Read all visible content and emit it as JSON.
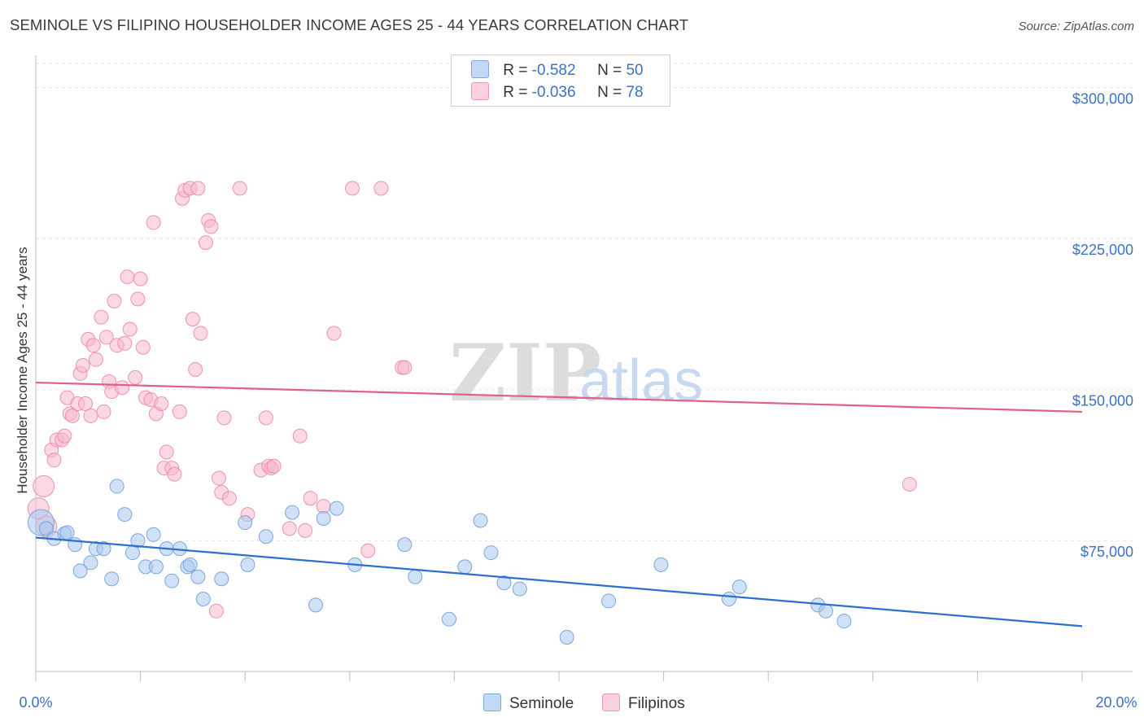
{
  "header": {
    "title": "SEMINOLE VS FILIPINO HOUSEHOLDER INCOME AGES 25 - 44 YEARS CORRELATION CHART",
    "source": "Source: ZipAtlas.com"
  },
  "watermark": {
    "zip": "ZIP",
    "atlas": "atlas"
  },
  "legend": {
    "rows": [
      {
        "r_label": "R = ",
        "r_value": "-0.582",
        "n_label": "N = ",
        "n_value": "50",
        "color": "#a9c8f0"
      },
      {
        "r_label": "R = ",
        "r_value": "-0.036",
        "n_label": "N = ",
        "n_value": "78",
        "color": "#f7b8cc"
      }
    ]
  },
  "bottom_legend": {
    "seminole": "Seminole",
    "filipinos": "Filipinos"
  },
  "chart_data": {
    "type": "scatter",
    "title": "SEMINOLE VS FILIPINO HOUSEHOLDER INCOME AGES 25 - 44 YEARS CORRELATION CHART",
    "xlabel": "",
    "ylabel": "Householder Income Ages 25 - 44 years",
    "xlim": [
      0,
      20
    ],
    "ylim": [
      10000,
      312000
    ],
    "x_tick_labels": [
      "0.0%",
      "20.0%"
    ],
    "y_ticks": [
      75000,
      150000,
      225000,
      300000
    ],
    "y_tick_labels": [
      "$75,000",
      "$150,000",
      "$225,000",
      "$300,000"
    ],
    "grid": "horizontal dashed",
    "legend_position": "top-center",
    "series": [
      {
        "name": "Seminole",
        "color": "#a9c8f0",
        "edge": "#6f9fdc",
        "line_color": "#2c6fcf",
        "trend": {
          "x": [
            0,
            20
          ],
          "y": [
            76500,
            32500
          ]
        },
        "points": [
          [
            0.1,
            84000,
            3
          ],
          [
            0.2,
            81000,
            1
          ],
          [
            0.35,
            76000,
            1
          ],
          [
            0.55,
            78500,
            1
          ],
          [
            0.6,
            79000,
            1
          ],
          [
            0.75,
            73000,
            1
          ],
          [
            0.85,
            60000,
            1
          ],
          [
            1.05,
            64000,
            1
          ],
          [
            1.15,
            71000,
            1
          ],
          [
            1.3,
            71000,
            1
          ],
          [
            1.45,
            56000,
            1
          ],
          [
            1.55,
            102000,
            1
          ],
          [
            1.7,
            88000,
            1
          ],
          [
            1.85,
            69000,
            1
          ],
          [
            1.95,
            75000,
            1
          ],
          [
            2.1,
            62000,
            1
          ],
          [
            2.25,
            78000,
            1
          ],
          [
            2.3,
            62000,
            1
          ],
          [
            2.5,
            71000,
            1
          ],
          [
            2.6,
            55000,
            1
          ],
          [
            2.75,
            71000,
            1
          ],
          [
            2.9,
            62000,
            1
          ],
          [
            2.95,
            63000,
            1
          ],
          [
            3.1,
            57000,
            1
          ],
          [
            3.2,
            46000,
            1
          ],
          [
            3.55,
            56000,
            1
          ],
          [
            4.0,
            84000,
            1
          ],
          [
            4.05,
            63000,
            1
          ],
          [
            4.4,
            77000,
            1
          ],
          [
            4.9,
            89000,
            1
          ],
          [
            5.35,
            43000,
            1
          ],
          [
            5.5,
            86000,
            1
          ],
          [
            5.75,
            91000,
            1
          ],
          [
            6.1,
            63000,
            1
          ],
          [
            7.05,
            73000,
            1
          ],
          [
            7.25,
            57000,
            1
          ],
          [
            7.9,
            36000,
            1
          ],
          [
            8.2,
            62000,
            1
          ],
          [
            8.5,
            85000,
            1
          ],
          [
            8.7,
            69000,
            1
          ],
          [
            8.95,
            54000,
            1
          ],
          [
            9.25,
            51000,
            1
          ],
          [
            10.15,
            27000,
            1
          ],
          [
            10.95,
            45000,
            1
          ],
          [
            11.95,
            63000,
            1
          ],
          [
            13.25,
            46000,
            1
          ],
          [
            13.45,
            52000,
            1
          ],
          [
            14.95,
            43000,
            1
          ],
          [
            15.1,
            40000,
            1
          ],
          [
            15.45,
            35000,
            1
          ]
        ]
      },
      {
        "name": "Filipinos",
        "color": "#f7b8cc",
        "edge": "#ec89a8",
        "line_color": "#e05f8b",
        "trend": {
          "x": [
            0,
            20
          ],
          "y": [
            153500,
            139000
          ]
        },
        "points": [
          [
            0.05,
            91000,
            2
          ],
          [
            0.15,
            102000,
            2
          ],
          [
            0.2,
            82000,
            2
          ],
          [
            0.3,
            120000,
            1
          ],
          [
            0.35,
            115000,
            1
          ],
          [
            0.4,
            125000,
            1
          ],
          [
            0.5,
            125000,
            1
          ],
          [
            0.55,
            127000,
            1
          ],
          [
            0.6,
            146000,
            1
          ],
          [
            0.65,
            138000,
            1
          ],
          [
            0.7,
            137000,
            1
          ],
          [
            0.8,
            143000,
            1
          ],
          [
            0.85,
            158000,
            1
          ],
          [
            0.9,
            162000,
            1
          ],
          [
            0.95,
            143000,
            1
          ],
          [
            1.0,
            175000,
            1
          ],
          [
            1.05,
            137000,
            1
          ],
          [
            1.1,
            172000,
            1
          ],
          [
            1.15,
            165000,
            1
          ],
          [
            1.25,
            186000,
            1
          ],
          [
            1.3,
            139000,
            1
          ],
          [
            1.35,
            176000,
            1
          ],
          [
            1.4,
            154000,
            1
          ],
          [
            1.45,
            149000,
            1
          ],
          [
            1.5,
            194000,
            1
          ],
          [
            1.55,
            172000,
            1
          ],
          [
            1.65,
            151000,
            1
          ],
          [
            1.7,
            173000,
            1
          ],
          [
            1.75,
            206000,
            1
          ],
          [
            1.8,
            180000,
            1
          ],
          [
            1.9,
            156000,
            1
          ],
          [
            1.95,
            195000,
            1
          ],
          [
            2.0,
            205000,
            1
          ],
          [
            2.05,
            171000,
            1
          ],
          [
            2.1,
            146000,
            1
          ],
          [
            2.2,
            145000,
            1
          ],
          [
            2.25,
            233000,
            1
          ],
          [
            2.3,
            138000,
            1
          ],
          [
            2.4,
            143000,
            1
          ],
          [
            2.45,
            111000,
            1
          ],
          [
            2.5,
            119000,
            1
          ],
          [
            2.6,
            111000,
            1
          ],
          [
            2.65,
            108000,
            1
          ],
          [
            2.75,
            139000,
            1
          ],
          [
            2.8,
            245000,
            1
          ],
          [
            2.85,
            249000,
            1
          ],
          [
            2.95,
            250000,
            1
          ],
          [
            3.0,
            185000,
            1
          ],
          [
            3.05,
            160000,
            1
          ],
          [
            3.1,
            250000,
            1
          ],
          [
            3.15,
            178000,
            1
          ],
          [
            3.25,
            223000,
            1
          ],
          [
            3.3,
            234000,
            1
          ],
          [
            3.35,
            231000,
            1
          ],
          [
            3.45,
            40000,
            1
          ],
          [
            3.5,
            106000,
            1
          ],
          [
            3.55,
            99000,
            1
          ],
          [
            3.6,
            136000,
            1
          ],
          [
            3.7,
            96000,
            1
          ],
          [
            3.9,
            250000,
            1
          ],
          [
            4.05,
            88000,
            1
          ],
          [
            4.3,
            110000,
            1
          ],
          [
            4.4,
            136000,
            1
          ],
          [
            4.45,
            112000,
            1
          ],
          [
            4.5,
            111000,
            1
          ],
          [
            4.55,
            112000,
            1
          ],
          [
            4.85,
            81000,
            1
          ],
          [
            5.05,
            127000,
            1
          ],
          [
            5.15,
            80000,
            1
          ],
          [
            5.25,
            96000,
            1
          ],
          [
            5.5,
            92000,
            1
          ],
          [
            5.7,
            178000,
            1
          ],
          [
            6.05,
            250000,
            1
          ],
          [
            6.35,
            70000,
            1
          ],
          [
            6.6,
            250000,
            1
          ],
          [
            7.0,
            161000,
            1
          ],
          [
            7.05,
            161000,
            1
          ],
          [
            16.7,
            103000,
            1
          ]
        ]
      }
    ]
  }
}
